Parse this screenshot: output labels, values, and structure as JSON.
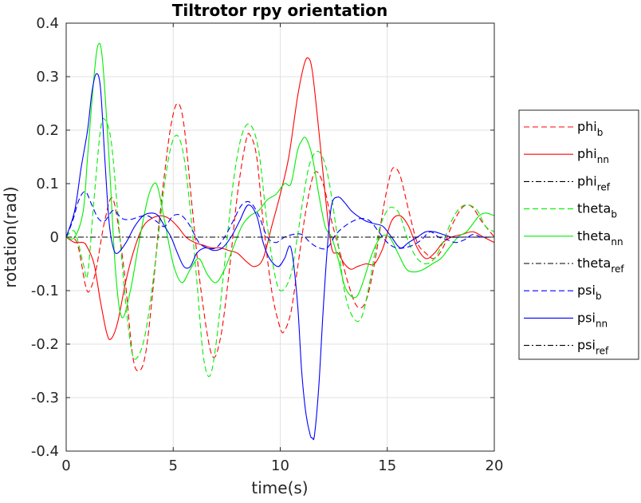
{
  "chart_data": {
    "type": "line",
    "title": "Tiltrotor rpy orientation",
    "xlabel": "time(s)",
    "ylabel": "rotation(rad)",
    "xlim": [
      0,
      20
    ],
    "ylim": [
      -0.4,
      0.4
    ],
    "xticks": [
      0,
      5,
      10,
      15,
      20
    ],
    "yticks": [
      0.4,
      0.3,
      0.2,
      0.1,
      0,
      -0.1,
      -0.2,
      -0.3,
      -0.4
    ],
    "xtick_labels": [
      "0",
      "5",
      "10",
      "15",
      "20"
    ],
    "ytick_labels": [
      "0.4",
      "0.3",
      "0.2",
      "0.1",
      "0",
      "-0.1",
      "-0.2",
      "-0.3",
      "-0.4"
    ],
    "grid": true,
    "legend_position": "right-outside",
    "series": [
      {
        "name": "phi_b",
        "label_main": "phi",
        "label_sub": "b",
        "color": "#ff0000",
        "style": "dashed",
        "x": [
          0,
          0.5,
          0.9,
          1.1,
          1.4,
          1.8,
          2.2,
          2.7,
          3.1,
          3.4,
          3.7,
          4.0,
          4.3,
          4.6,
          4.9,
          5.2,
          5.5,
          5.9,
          6.3,
          6.8,
          7.2,
          7.6,
          8.0,
          8.4,
          8.6,
          8.9,
          9.2,
          9.6,
          10.0,
          10.2,
          10.5,
          10.8,
          11.2,
          11.6,
          12.0,
          12.4,
          12.8,
          13.2,
          13.6,
          14.0,
          14.4,
          14.8,
          15.1,
          15.3,
          15.6,
          16.0,
          16.4,
          16.8,
          17.2,
          17.6,
          18.0,
          18.4,
          18.7,
          19.0,
          19.4,
          19.8,
          20
        ],
        "y": [
          0,
          -0.01,
          -0.09,
          -0.1,
          -0.06,
          0.03,
          0.07,
          -0.06,
          -0.22,
          -0.25,
          -0.22,
          -0.12,
          0.01,
          0.12,
          0.21,
          0.25,
          0.21,
          0.05,
          -0.1,
          -0.22,
          -0.19,
          -0.07,
          0.08,
          0.18,
          0.19,
          0.15,
          0.03,
          -0.1,
          -0.17,
          -0.175,
          -0.14,
          -0.06,
          0.05,
          0.12,
          0.1,
          0.03,
          -0.03,
          -0.09,
          -0.13,
          -0.12,
          -0.05,
          0.05,
          0.11,
          0.13,
          0.115,
          0.05,
          -0.01,
          -0.03,
          -0.04,
          -0.02,
          0.02,
          0.05,
          0.06,
          0.055,
          0.03,
          0.01,
          0.0
        ]
      },
      {
        "name": "phi_nn",
        "label_main": "phi",
        "label_sub": "nn",
        "color": "#ff0000",
        "style": "solid",
        "x": [
          0,
          0.4,
          0.8,
          1.0,
          1.3,
          1.6,
          1.9,
          2.1,
          2.4,
          2.8,
          3.2,
          3.6,
          4.0,
          4.4,
          4.8,
          5.2,
          5.6,
          6.0,
          6.4,
          6.8,
          7.2,
          7.6,
          8.0,
          8.4,
          8.8,
          9.2,
          9.6,
          10.0,
          10.4,
          10.8,
          11.1,
          11.3,
          11.5,
          11.8,
          12.1,
          12.4,
          12.7,
          13.0,
          13.3,
          13.6,
          14.0,
          14.4,
          14.8,
          15.2,
          15.6,
          16.0,
          16.4,
          16.8,
          17.2,
          17.6,
          18.0,
          18.5,
          19.0,
          19.5,
          20
        ],
        "y": [
          0,
          -0.01,
          -0.01,
          -0.02,
          -0.05,
          -0.12,
          -0.18,
          -0.19,
          -0.16,
          -0.08,
          -0.02,
          0.02,
          0.035,
          0.04,
          0.035,
          0.02,
          0.0,
          -0.01,
          -0.015,
          -0.02,
          -0.02,
          -0.025,
          -0.03,
          -0.045,
          -0.055,
          -0.04,
          0.02,
          0.08,
          0.15,
          0.26,
          0.32,
          0.335,
          0.31,
          0.2,
          0.08,
          -0.02,
          -0.03,
          -0.05,
          -0.06,
          -0.055,
          -0.05,
          -0.05,
          -0.02,
          0.03,
          0.04,
          0.02,
          -0.02,
          -0.04,
          -0.03,
          -0.01,
          0.0,
          0.005,
          0.01,
          0.0,
          -0.01
        ]
      },
      {
        "name": "phi_ref",
        "label_main": "phi",
        "label_sub": "ref",
        "color": "#000000",
        "style": "dashdot",
        "x": [
          0,
          20
        ],
        "y": [
          0,
          0
        ]
      },
      {
        "name": "theta_b",
        "label_main": "theta",
        "label_sub": "b",
        "color": "#00ee00",
        "style": "dashed",
        "x": [
          0,
          0.4,
          0.8,
          1.0,
          1.3,
          1.6,
          1.8,
          2.1,
          2.4,
          2.8,
          3.1,
          3.4,
          3.7,
          4.0,
          4.3,
          4.6,
          4.9,
          5.2,
          5.5,
          5.8,
          6.1,
          6.4,
          6.7,
          7.0,
          7.4,
          7.8,
          8.2,
          8.6,
          9.0,
          9.4,
          9.8,
          10.1,
          10.5,
          10.8,
          11.1,
          11.4,
          11.8,
          12.2,
          12.6,
          13.0,
          13.4,
          13.8,
          14.2,
          14.6,
          15.0,
          15.3,
          15.6,
          16.0,
          16.4,
          16.8,
          17.2,
          17.6,
          18.0,
          18.4,
          18.8,
          19.2,
          19.6,
          20
        ],
        "y": [
          0,
          0.01,
          -0.05,
          -0.07,
          0.07,
          0.2,
          0.22,
          0.18,
          0.05,
          -0.13,
          -0.22,
          -0.22,
          -0.18,
          -0.1,
          0.0,
          0.1,
          0.17,
          0.19,
          0.15,
          0.05,
          -0.08,
          -0.22,
          -0.26,
          -0.2,
          -0.05,
          0.1,
          0.19,
          0.21,
          0.16,
          0.02,
          -0.08,
          -0.1,
          -0.07,
          0.0,
          0.08,
          0.14,
          0.16,
          0.12,
          0.02,
          -0.1,
          -0.15,
          -0.15,
          -0.08,
          0.01,
          0.05,
          0.055,
          0.04,
          -0.01,
          -0.04,
          -0.05,
          -0.04,
          -0.01,
          0.03,
          0.055,
          0.06,
          0.05,
          0.02,
          0.01
        ]
      },
      {
        "name": "theta_nn",
        "label_main": "theta",
        "label_sub": "nn",
        "color": "#00ee00",
        "style": "solid",
        "x": [
          0,
          0.4,
          0.8,
          1.0,
          1.3,
          1.5,
          1.7,
          2.0,
          2.3,
          2.6,
          3.0,
          3.4,
          3.8,
          4.1,
          4.3,
          4.6,
          5.0,
          5.4,
          5.8,
          6.2,
          6.6,
          7.0,
          7.4,
          7.8,
          8.2,
          8.6,
          9.0,
          9.4,
          9.8,
          10.2,
          10.5,
          10.8,
          11.0,
          11.2,
          11.5,
          11.8,
          12.1,
          12.4,
          12.7,
          13.0,
          13.3,
          13.6,
          13.9,
          14.3,
          14.7,
          15.1,
          15.5,
          15.9,
          16.3,
          16.7,
          17.1,
          17.5,
          17.9,
          18.3,
          18.7,
          19.0,
          19.3,
          19.6,
          20
        ],
        "y": [
          0,
          0.0,
          0.05,
          0.15,
          0.3,
          0.36,
          0.33,
          0.15,
          -0.06,
          -0.15,
          -0.1,
          -0.01,
          0.07,
          0.1,
          0.09,
          0.03,
          -0.05,
          -0.085,
          -0.06,
          -0.04,
          -0.07,
          -0.085,
          -0.06,
          -0.02,
          0.02,
          0.04,
          0.05,
          0.07,
          0.08,
          0.1,
          0.1,
          0.16,
          0.18,
          0.185,
          0.15,
          0.08,
          0.02,
          0.0,
          -0.04,
          -0.09,
          -0.11,
          -0.11,
          -0.08,
          -0.03,
          0.0,
          0.0,
          -0.03,
          -0.06,
          -0.065,
          -0.06,
          -0.05,
          -0.04,
          -0.02,
          0.0,
          0.01,
          0.025,
          0.04,
          0.045,
          0.04
        ]
      },
      {
        "name": "theta_ref",
        "label_main": "theta",
        "label_sub": "ref",
        "color": "#000000",
        "style": "dashdot",
        "x": [
          0,
          20
        ],
        "y": [
          0,
          0
        ]
      },
      {
        "name": "psi_b",
        "label_main": "psi",
        "label_sub": "b",
        "color": "#0000ff",
        "style": "dashed",
        "x": [
          0,
          0.3,
          0.6,
          0.9,
          1.2,
          1.5,
          1.8,
          2.2,
          2.6,
          3.0,
          3.4,
          3.8,
          4.2,
          4.6,
          5.0,
          5.4,
          5.8,
          6.2,
          6.6,
          7.0,
          7.4,
          7.8,
          8.2,
          8.6,
          9.0,
          9.4,
          9.8,
          10.2,
          10.6,
          11.0,
          11.4,
          11.8,
          12.2,
          12.6,
          13.0,
          13.4,
          13.8,
          14.2,
          14.6,
          15.0,
          15.4,
          15.8,
          16.2,
          16.6,
          17.0,
          17.4,
          17.8,
          18.2,
          18.6,
          19.0,
          19.4,
          19.8,
          20
        ],
        "y": [
          0,
          0.03,
          0.07,
          0.085,
          0.06,
          0.035,
          0.03,
          0.05,
          0.035,
          0.033,
          0.038,
          0.04,
          0.03,
          0.02,
          0.04,
          0.04,
          0.02,
          -0.01,
          -0.02,
          -0.02,
          0.0,
          0.03,
          0.06,
          0.065,
          0.04,
          0.0,
          -0.01,
          0.0,
          0.005,
          0.005,
          -0.01,
          -0.02,
          -0.02,
          0.005,
          0.02,
          0.03,
          0.035,
          0.03,
          0.01,
          -0.01,
          -0.02,
          -0.02,
          -0.015,
          -0.005,
          0.01,
          0.0,
          -0.005,
          -0.01,
          -0.005,
          0.005,
          0.0,
          0.0,
          0.0
        ]
      },
      {
        "name": "psi_nn",
        "label_main": "psi",
        "label_sub": "nn",
        "color": "#0000ff",
        "style": "solid",
        "x": [
          0,
          0.4,
          0.7,
          1.0,
          1.2,
          1.4,
          1.6,
          1.8,
          2.0,
          2.2,
          2.4,
          2.8,
          3.2,
          3.6,
          4.0,
          4.3,
          4.6,
          4.9,
          5.2,
          5.5,
          5.8,
          6.1,
          6.5,
          6.9,
          7.3,
          7.7,
          8.1,
          8.5,
          8.9,
          9.2,
          9.5,
          9.9,
          10.2,
          10.5,
          10.8,
          11.0,
          11.2,
          11.4,
          11.5,
          11.6,
          11.8,
          12.0,
          12.2,
          12.4,
          12.7,
          13.0,
          13.3,
          13.6,
          14.0,
          14.4,
          14.8,
          15.2,
          15.6,
          16.0,
          16.4,
          16.8,
          17.2,
          17.6,
          18.0,
          18.5,
          19.0,
          19.5,
          20
        ],
        "y": [
          0,
          0.05,
          0.13,
          0.2,
          0.27,
          0.305,
          0.28,
          0.15,
          0.03,
          -0.02,
          -0.03,
          -0.01,
          0.02,
          0.04,
          0.045,
          0.04,
          0.02,
          0.0,
          -0.03,
          -0.055,
          -0.055,
          -0.03,
          -0.02,
          -0.025,
          -0.02,
          0.0,
          0.03,
          0.06,
          0.04,
          -0.01,
          -0.04,
          -0.055,
          -0.04,
          -0.02,
          -0.12,
          -0.25,
          -0.33,
          -0.37,
          -0.375,
          -0.37,
          -0.28,
          -0.14,
          -0.02,
          0.06,
          0.075,
          0.065,
          0.05,
          0.04,
          0.03,
          0.025,
          0.02,
          0.0,
          -0.02,
          -0.01,
          0.0,
          0.01,
          0.01,
          0.005,
          0.0,
          0.0,
          0.0,
          0.0,
          0.0
        ]
      },
      {
        "name": "psi_ref",
        "label_main": "psi",
        "label_sub": "ref",
        "color": "#000000",
        "style": "dashdot",
        "x": [
          0,
          20
        ],
        "y": [
          0,
          0
        ]
      }
    ]
  }
}
